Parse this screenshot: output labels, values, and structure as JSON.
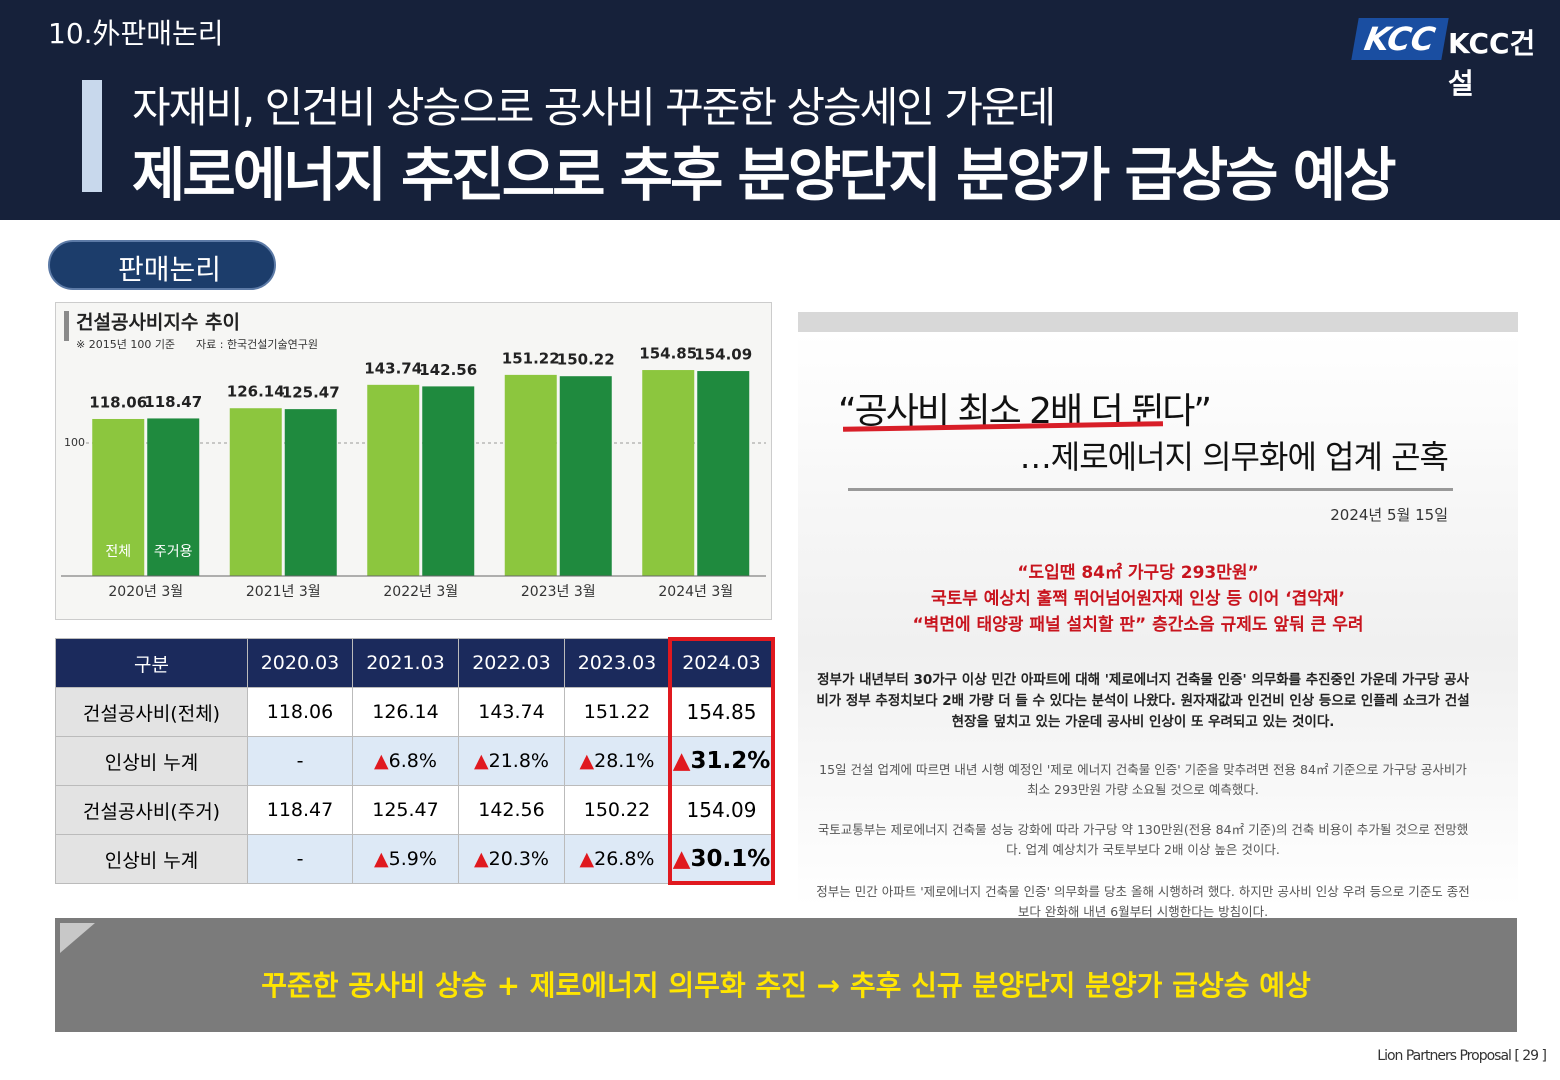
{
  "header": {
    "section": "10.外판매논리",
    "logo_mark": "KCC",
    "logo_text": "KCC건설",
    "title_line1": "자재비, 인건비 상승으로 공사비 꾸준한 상승세인 가운데",
    "title_line2": "제로에너지 추진으로 추후 분양단지 분양가 급상승 예상"
  },
  "badge": "판매논리",
  "chart_data": {
    "type": "bar",
    "title": "건설공사비지수 추이",
    "notes": [
      "※ 2015년 100 기준",
      "자료 : 한국건설기술연구원"
    ],
    "categories": [
      "2020년 3월",
      "2021년 3월",
      "2022년 3월",
      "2023년 3월",
      "2024년 3월"
    ],
    "series": [
      {
        "name": "전체",
        "color": "#8cc63e",
        "values": [
          118.06,
          126.14,
          143.74,
          151.22,
          154.85
        ]
      },
      {
        "name": "주거용",
        "color": "#1f8a3e",
        "values": [
          118.47,
          125.47,
          142.56,
          150.22,
          154.09
        ]
      }
    ],
    "ylim": [
      0,
      200
    ],
    "yticks": [
      100
    ],
    "grid": true
  },
  "table": {
    "header": [
      "구분",
      "2020.03",
      "2021.03",
      "2022.03",
      "2023.03",
      "2024.03"
    ],
    "rows": [
      [
        "건설공사비(전체)",
        "118.06",
        "126.14",
        "143.74",
        "151.22",
        "154.85"
      ],
      [
        "인상비 누계",
        "-",
        "▲6.8%",
        "▲21.8%",
        "▲28.1%",
        "▲31.2%"
      ],
      [
        "건설공사비(주거)",
        "118.47",
        "125.47",
        "142.56",
        "150.22",
        "154.09"
      ],
      [
        "인상비 누계",
        "-",
        "▲5.9%",
        "▲20.3%",
        "▲26.8%",
        "▲30.1%"
      ]
    ]
  },
  "news": {
    "headline": "“공사비 최소 2배 더 뛴다”",
    "subheadline": "…제로에너지 의무화에 업계 곤혹",
    "date": "2024년 5월 15일",
    "highlights": [
      "“도입땐 84㎡ 가구당 293만원”",
      "국토부 예상치 훌쩍 뛰어넘어원자재 인상 등 이어 ‘겹악재’",
      "“벽면에 태양광 패널 설치할 판” 층간소음 규제도 앞둬 큰 우려"
    ],
    "paragraphs": [
      "정부가 내년부터 30가구 이상 민간 아파트에 대해 '제로에너지 건축물 인증' 의무화를 추진중인 가운데 가구당 공사비가 정부 추정치보다 2배 가량 더 들 수 있다는 분석이 나왔다. 원자재값과 인건비 인상 등으로 인플레 쇼크가 건설 현장을 덮치고 있는 가운데 공사비 인상이 또 우려되고 있는 것이다.",
      "15일 건설 업계에 따르면 내년 시행 예정인 '제로 에너지 건축물 인증' 기준을 맞추려면 전용 84㎡ 기준으로 가구당 공사비가 최소 293만원 가량 소요될 것으로 예측했다.",
      "국토교통부는 제로에너지 건축물 성능 강화에 따라 가구당 약 130만원(전용 84㎡ 기준)의 건축 비용이 추가될 것으로 전망했다. 업계 예상치가 국토부보다 2배 이상 높은 것이다.",
      "정부는 민간 아파트 '제로에너지 건축물 인증' 의무화를 당초 올해 시행하려 했다. 하지만 공사비 인상 우려 등으로 기준도 종전보다 완화해 내년 6월부터 시행한다는 방침이다."
    ]
  },
  "banner": "꾸준한 공사비 상승 + 제로에너지 의무화 추진 → 추후 신규 분양단지 분양가 급상승 예상",
  "footer": "Lion Partners Proposal [ 29 ]"
}
